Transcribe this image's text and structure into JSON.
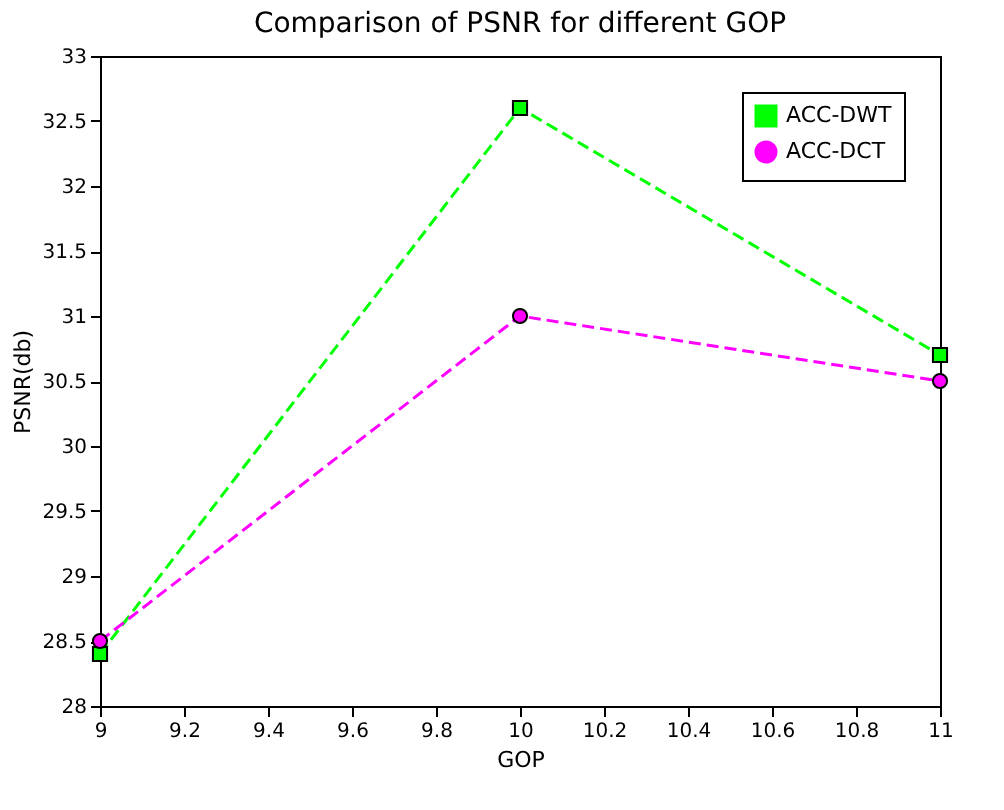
{
  "chart_data": {
    "type": "line",
    "title": "Comparison of PSNR for different GOP",
    "xlabel": "GOP",
    "ylabel": "PSNR(db)",
    "x": [
      9,
      10,
      11
    ],
    "series": [
      {
        "name": "ACC-DWT",
        "color": "#00ff00",
        "values": [
          28.4,
          32.6,
          30.7
        ],
        "marker": "square"
      },
      {
        "name": "ACC-DCT",
        "color": "#ff00ff",
        "values": [
          28.5,
          31.0,
          30.5
        ],
        "marker": "circle"
      }
    ],
    "xlim": [
      9,
      11
    ],
    "xticks": [
      9,
      9.2,
      9.4,
      9.6,
      9.8,
      10,
      10.2,
      10.4,
      10.6,
      10.8,
      11
    ],
    "ylim": [
      28,
      33
    ],
    "yticks": [
      28,
      28.5,
      29,
      29.5,
      30,
      30.5,
      31,
      31.5,
      32,
      32.5,
      33
    ],
    "grid": false,
    "legend": "top right",
    "line_style": "dashed"
  }
}
